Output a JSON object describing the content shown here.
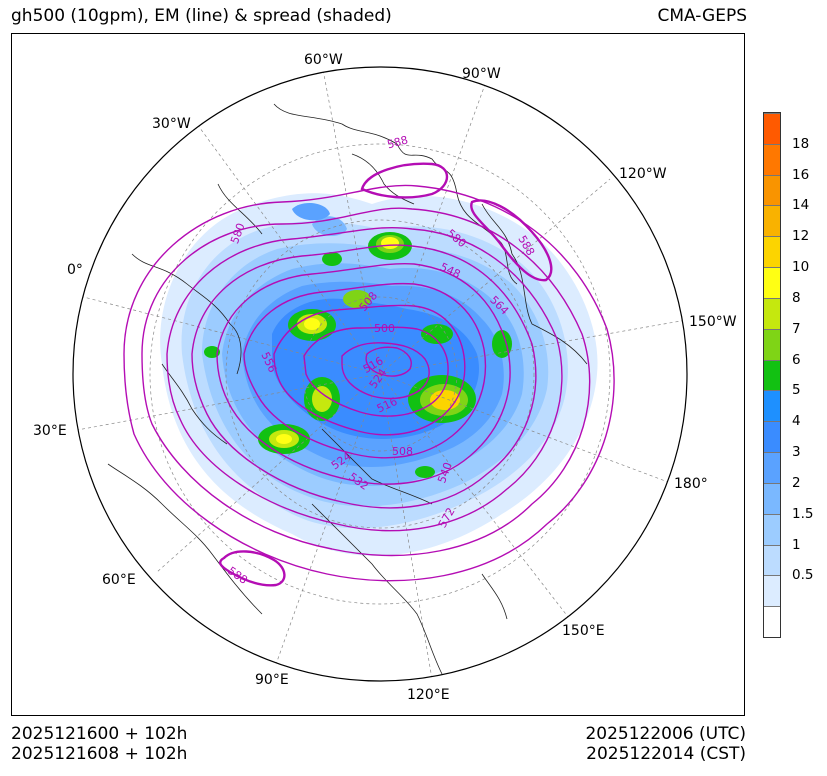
{
  "title_left": "gh500 (10gpm), EM (line) & spread (shaded)",
  "title_right": "CMA-GEPS",
  "footer": {
    "init_utc": "2025121600 + 102h",
    "init_cst": "2025121608 + 102h",
    "valid_utc": "2025122006 (UTC)",
    "valid_cst": "2025122014 (CST)"
  },
  "longitude_labels": [
    "60°W",
    "90°W",
    "30°W",
    "120°W",
    "0°",
    "150°W",
    "30°E",
    "180°",
    "60°E",
    "150°E",
    "90°E",
    "120°E"
  ],
  "contour_labels": [
    "588",
    "580",
    "588",
    "580",
    "548",
    "564",
    "508",
    "500",
    "556",
    "516",
    "524",
    "516",
    "508",
    "524",
    "532",
    "540",
    "572",
    "588"
  ],
  "colorbar": {
    "ticks": [
      "18",
      "16",
      "14",
      "12",
      "10",
      "8",
      "7",
      "6",
      "5",
      "4",
      "3",
      "2",
      "1.5",
      "1",
      "0.5"
    ],
    "colors": [
      "#ffffff",
      "#dcecff",
      "#bcdcff",
      "#9cccff",
      "#7ab8ff",
      "#5aa2ff",
      "#3a8cff",
      "#1e90ff",
      "#12c112",
      "#7fd416",
      "#c5e80e",
      "#ffff14",
      "#fcd400",
      "#f9b200",
      "#f99400",
      "#ff7800",
      "#ff5a00"
    ]
  },
  "colors": {
    "contour": "#b40db4",
    "spread_low": "#bcdcff",
    "spread_high": "#ffff14"
  }
}
